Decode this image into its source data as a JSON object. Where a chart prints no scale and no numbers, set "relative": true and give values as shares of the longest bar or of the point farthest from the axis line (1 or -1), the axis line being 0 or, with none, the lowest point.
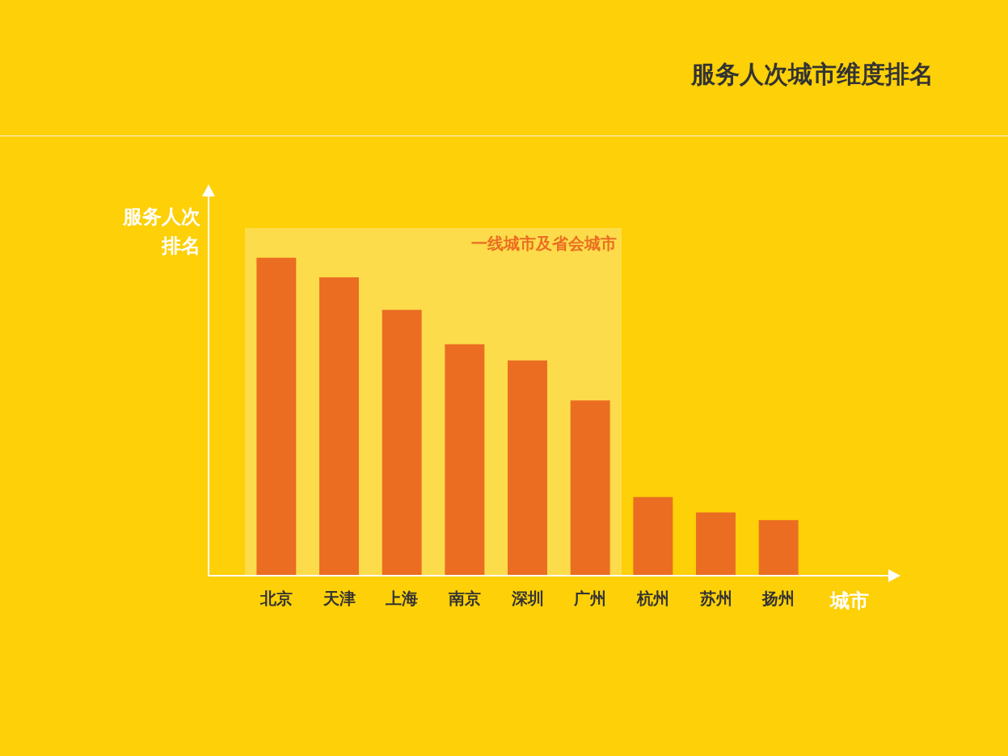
{
  "chart_data": {
    "type": "bar",
    "title": "服务人次城市维度排名",
    "xlabel": "城市",
    "ylabel": "服务人次排名",
    "relative": true,
    "categories": [
      "北京",
      "天津",
      "上海",
      "南京",
      "深圳",
      "广州",
      "杭州",
      "苏州",
      "扬州"
    ],
    "values": [
      1,
      0.938,
      0.836,
      0.728,
      0.677,
      0.551,
      0.247,
      0.199,
      0.175
    ],
    "color": "#eb6d22",
    "bands": [
      {
        "axis": "x",
        "from": "北京",
        "to": "广州",
        "label": "一线城市及省会城市",
        "color": "#fcdc4a"
      }
    ],
    "legend": false,
    "grid": false
  }
}
